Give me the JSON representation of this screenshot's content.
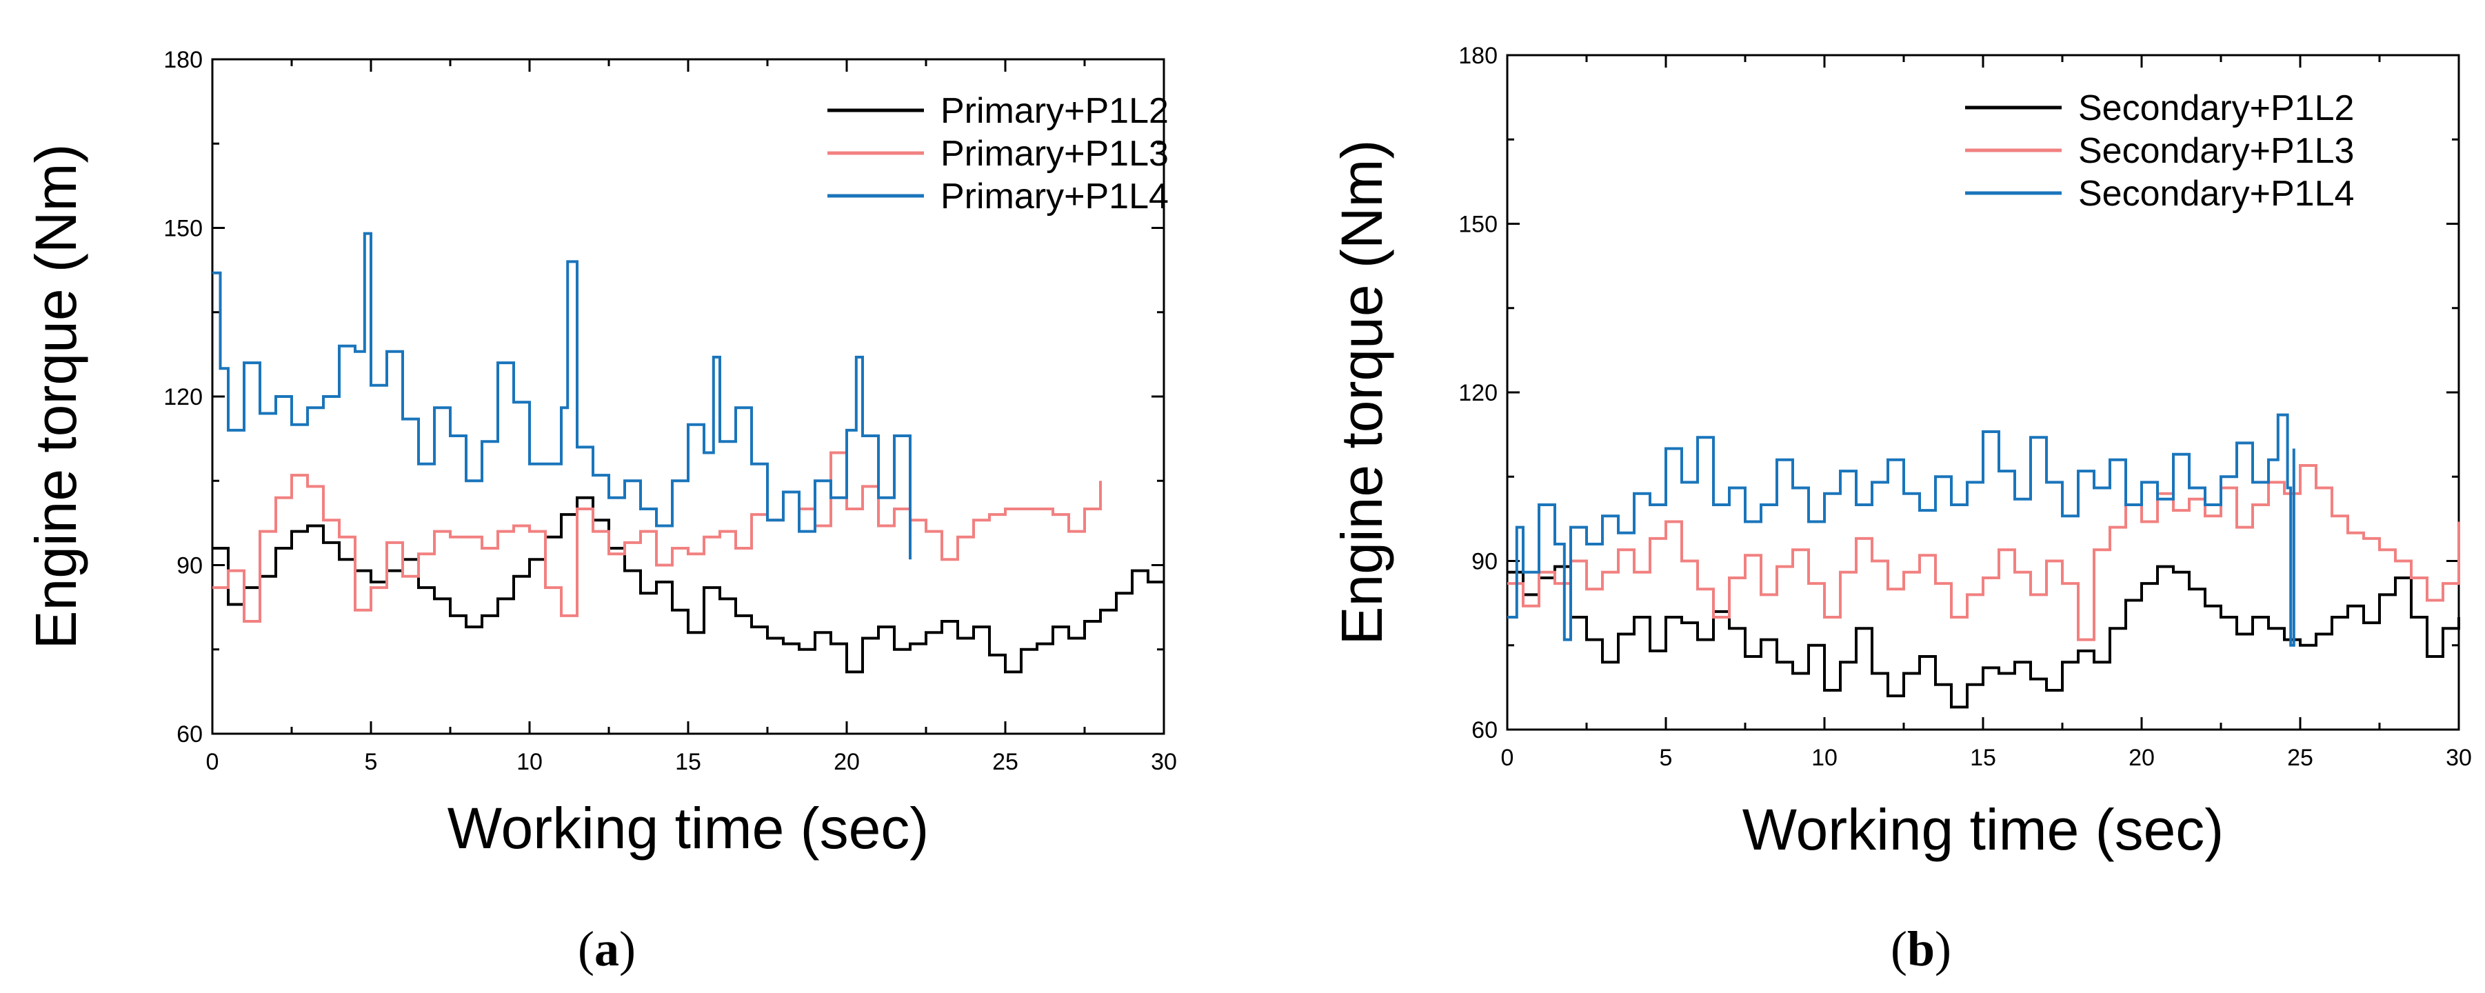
{
  "chart_data": [
    {
      "type": "line",
      "panel_label": "a",
      "xlabel": "Working time (sec)",
      "ylabel": "Engine torque (Nm)",
      "xlim": [
        0,
        30
      ],
      "ylim": [
        60,
        180
      ],
      "xticks": [
        0,
        5,
        10,
        15,
        20,
        25,
        30
      ],
      "yticks": [
        60,
        90,
        120,
        150,
        180
      ],
      "legend_position": "top-right",
      "grid": false,
      "series": [
        {
          "name": "Primary+P1L2",
          "color": "#000000",
          "x": [
            0,
            0.5,
            1,
            1.5,
            2,
            2.5,
            3,
            3.5,
            4,
            4.5,
            5,
            5.5,
            6,
            6.5,
            7,
            7.5,
            8,
            8.5,
            9,
            9.5,
            10,
            10.5,
            11,
            11.5,
            12,
            12.5,
            13,
            13.5,
            14,
            14.5,
            15,
            15.5,
            16,
            16.5,
            17,
            17.5,
            18,
            18.5,
            19,
            19.5,
            20,
            20.5,
            21,
            21.5,
            22,
            22.5,
            23,
            23.5,
            24,
            24.5,
            25,
            25.5,
            26,
            26.5,
            27,
            27.5,
            28,
            28.5,
            29,
            29.5,
            30
          ],
          "y": [
            93,
            83,
            86,
            88,
            93,
            96,
            97,
            94,
            91,
            89,
            87,
            89,
            91,
            86,
            84,
            81,
            79,
            81,
            84,
            88,
            91,
            95,
            99,
            102,
            98,
            93,
            89,
            85,
            87,
            82,
            78,
            86,
            84,
            81,
            79,
            77,
            76,
            75,
            78,
            76,
            71,
            77,
            79,
            75,
            76,
            78,
            80,
            77,
            79,
            74,
            71,
            75,
            76,
            79,
            77,
            80,
            82,
            85,
            89,
            87,
            87
          ]
        },
        {
          "name": "Primary+P1L3",
          "color": "#f28080",
          "x": [
            0,
            0.5,
            1,
            1.5,
            2,
            2.5,
            3,
            3.5,
            4,
            4.5,
            5,
            5.5,
            6,
            6.5,
            7,
            7.5,
            8,
            8.5,
            9,
            9.5,
            10,
            10.5,
            11,
            11.5,
            12,
            12.5,
            13,
            13.5,
            14,
            14.5,
            15,
            15.5,
            16,
            16.5,
            17,
            17.5,
            18,
            18.5,
            19,
            19.5,
            20,
            20.5,
            21,
            21.5,
            22,
            22.5,
            23,
            23.5,
            24,
            24.5,
            25,
            25.5,
            26,
            26.5,
            27,
            27.5,
            28
          ],
          "y": [
            86,
            89,
            80,
            96,
            102,
            106,
            104,
            98,
            95,
            82,
            86,
            94,
            88,
            92,
            96,
            95,
            95,
            93,
            96,
            97,
            96,
            86,
            81,
            100,
            96,
            92,
            94,
            96,
            90,
            93,
            92,
            95,
            96,
            93,
            99,
            98,
            103,
            100,
            97,
            110,
            100,
            104,
            97,
            100,
            98,
            96,
            91,
            95,
            98,
            99,
            100,
            100,
            100,
            99,
            96,
            100,
            105
          ]
        },
        {
          "name": "Primary+P1L4",
          "color": "#1a75bb",
          "x": [
            0,
            0.25,
            0.5,
            1,
            1.5,
            2,
            2.5,
            3,
            3.5,
            4,
            4.5,
            4.8,
            5,
            5.5,
            6,
            6.5,
            7,
            7.5,
            8,
            8.5,
            9,
            9.5,
            10,
            10.5,
            11,
            11.2,
            11.5,
            12,
            12.5,
            13,
            13.5,
            14,
            14.5,
            15,
            15.5,
            15.8,
            16,
            16.5,
            17,
            17.5,
            18,
            18.5,
            19,
            19.5,
            20,
            20.3,
            20.5,
            21,
            21.5,
            22
          ],
          "y": [
            142,
            125,
            114,
            126,
            117,
            120,
            115,
            118,
            120,
            129,
            128,
            149,
            122,
            128,
            116,
            108,
            118,
            113,
            105,
            112,
            126,
            119,
            108,
            108,
            118,
            144,
            111,
            106,
            102,
            105,
            100,
            97,
            105,
            115,
            110,
            127,
            112,
            118,
            108,
            98,
            103,
            96,
            105,
            102,
            114,
            127,
            113,
            102,
            113,
            91
          ]
        }
      ]
    },
    {
      "type": "line",
      "panel_label": "b",
      "xlabel": "Working time (sec)",
      "ylabel": "Engine torque (Nm)",
      "xlim": [
        0,
        30
      ],
      "ylim": [
        60,
        180
      ],
      "xticks": [
        0,
        5,
        10,
        15,
        20,
        25,
        30
      ],
      "yticks": [
        60,
        90,
        120,
        150,
        180
      ],
      "legend_position": "top-right",
      "grid": false,
      "series": [
        {
          "name": "Secondary+P1L2",
          "color": "#000000",
          "x": [
            0,
            0.5,
            1,
            1.5,
            2,
            2.5,
            3,
            3.5,
            4,
            4.5,
            5,
            5.5,
            6,
            6.5,
            7,
            7.5,
            8,
            8.5,
            9,
            9.5,
            10,
            10.5,
            11,
            11.5,
            12,
            12.5,
            13,
            13.5,
            14,
            14.5,
            15,
            15.5,
            16,
            16.5,
            17,
            17.5,
            18,
            18.5,
            19,
            19.5,
            20,
            20.5,
            21,
            21.5,
            22,
            22.5,
            23,
            23.5,
            24,
            24.5,
            25,
            25.5,
            26,
            26.5,
            27,
            27.5,
            28,
            28.5,
            29,
            29.5,
            30
          ],
          "y": [
            88,
            84,
            87,
            89,
            80,
            76,
            72,
            77,
            80,
            74,
            80,
            79,
            76,
            81,
            78,
            73,
            76,
            72,
            70,
            75,
            67,
            72,
            78,
            70,
            66,
            70,
            73,
            68,
            64,
            68,
            71,
            70,
            72,
            69,
            67,
            72,
            74,
            72,
            78,
            83,
            86,
            89,
            88,
            85,
            82,
            80,
            77,
            80,
            78,
            76,
            75,
            77,
            80,
            82,
            79,
            84,
            87,
            80,
            73,
            78,
            80
          ]
        },
        {
          "name": "Secondary+P1L3",
          "color": "#f28080",
          "x": [
            0,
            0.5,
            1,
            1.5,
            2,
            2.5,
            3,
            3.5,
            4,
            4.5,
            5,
            5.5,
            6,
            6.5,
            7,
            7.5,
            8,
            8.5,
            9,
            9.5,
            10,
            10.5,
            11,
            11.5,
            12,
            12.5,
            13,
            13.5,
            14,
            14.5,
            15,
            15.5,
            16,
            16.5,
            17,
            17.5,
            18,
            18.5,
            19,
            19.5,
            20,
            20.5,
            21,
            21.5,
            22,
            22.5,
            23,
            23.5,
            24,
            24.5,
            25,
            25.5,
            26,
            26.5,
            27,
            27.5,
            28,
            28.5,
            29,
            29.5,
            30
          ],
          "y": [
            86,
            82,
            88,
            86,
            90,
            85,
            88,
            92,
            88,
            94,
            97,
            90,
            85,
            80,
            87,
            91,
            84,
            89,
            92,
            86,
            80,
            88,
            94,
            90,
            85,
            88,
            91,
            86,
            80,
            84,
            87,
            92,
            88,
            84,
            90,
            86,
            76,
            92,
            96,
            100,
            97,
            102,
            99,
            101,
            98,
            103,
            96,
            100,
            104,
            102,
            107,
            103,
            98,
            95,
            94,
            92,
            90,
            87,
            83,
            86,
            97
          ]
        },
        {
          "name": "Secondary+P1L4",
          "color": "#1a75bb",
          "x": [
            0,
            0.3,
            0.5,
            1,
            1.5,
            1.8,
            2,
            2.5,
            3,
            3.5,
            4,
            4.5,
            5,
            5.5,
            6,
            6.5,
            7,
            7.5,
            8,
            8.5,
            9,
            9.5,
            10,
            10.5,
            11,
            11.5,
            12,
            12.5,
            13,
            13.5,
            14,
            14.5,
            15,
            15.5,
            16,
            16.5,
            17,
            17.5,
            18,
            18.5,
            19,
            19.5,
            20,
            20.5,
            21,
            21.5,
            22,
            22.5,
            23,
            23.5,
            24,
            24.3,
            24.6,
            24.7,
            24.8
          ],
          "y": [
            80,
            96,
            88,
            100,
            93,
            76,
            96,
            93,
            98,
            95,
            102,
            100,
            110,
            104,
            112,
            100,
            103,
            97,
            100,
            108,
            103,
            97,
            102,
            106,
            100,
            104,
            108,
            102,
            99,
            105,
            100,
            104,
            113,
            106,
            101,
            112,
            104,
            98,
            106,
            103,
            108,
            100,
            104,
            101,
            109,
            103,
            100,
            105,
            111,
            104,
            108,
            116,
            103,
            75,
            110
          ]
        }
      ]
    }
  ]
}
